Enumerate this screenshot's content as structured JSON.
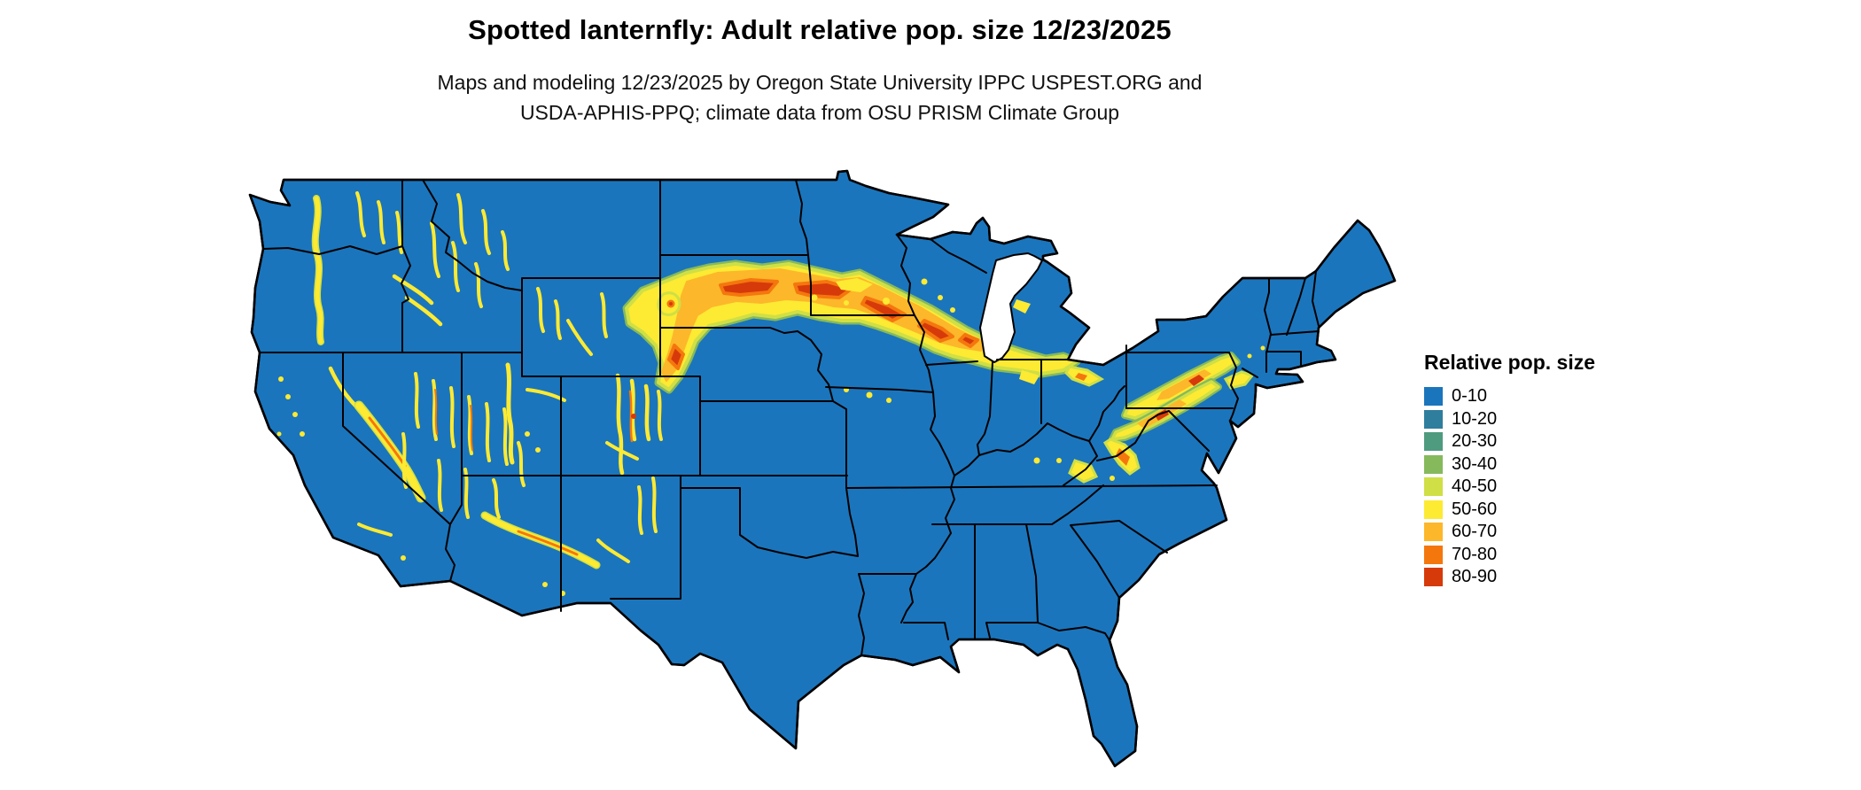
{
  "header": {
    "title": "Spotted lanternfly: Adult relative pop. size 12/23/2025",
    "subtitle_line1": "Maps and modeling 12/23/2025 by Oregon State University IPPC USPEST.ORG and",
    "subtitle_line2": "USDA-APHIS-PPQ; climate data from OSU PRISM Climate Group"
  },
  "legend": {
    "title": "Relative pop. size",
    "items": [
      {
        "label": "0-10",
        "color": "#1b75bc"
      },
      {
        "label": "10-20",
        "color": "#2f7e9e"
      },
      {
        "label": "20-30",
        "color": "#4f9b7f"
      },
      {
        "label": "30-40",
        "color": "#86b95c"
      },
      {
        "label": "40-50",
        "color": "#cfdf45"
      },
      {
        "label": "50-60",
        "color": "#fdea33"
      },
      {
        "label": "60-70",
        "color": "#fdb72a"
      },
      {
        "label": "70-80",
        "color": "#f4770e"
      },
      {
        "label": "80-90",
        "color": "#d63a0a"
      }
    ]
  },
  "map": {
    "palette": {
      "blue": "#1b75bc",
      "blue2": "#2f7e9e",
      "teal": "#4f9b7f",
      "green": "#86b95c",
      "yellowgreen": "#cfdf45",
      "yellow": "#fdea33",
      "orange": "#fdb72a",
      "darkorange": "#f4770e",
      "red": "#d63a0a",
      "border": "#000000",
      "water": "#ffffff"
    }
  }
}
